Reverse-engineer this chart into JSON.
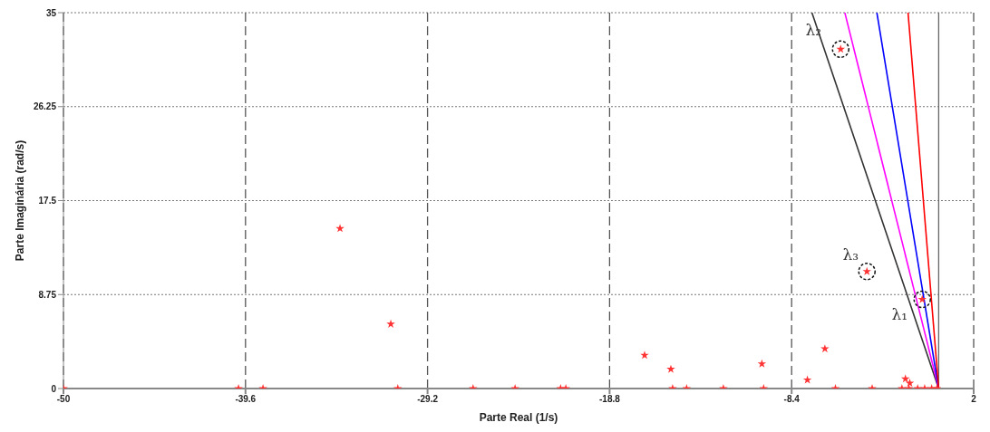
{
  "chart_data": {
    "type": "scatter",
    "xlabel": "Parte Real (1/s)",
    "ylabel": "Parte Imaginária (rad/s)",
    "xlim": [
      -50,
      2
    ],
    "xticks": [
      -50,
      -39.6,
      -29.2,
      -18.8,
      -8.4,
      2
    ],
    "ylim": [
      0,
      35
    ],
    "yticks": [
      0,
      8.75,
      17.5,
      26.25,
      35
    ],
    "grid": true,
    "series": [
      {
        "type": "line",
        "color": "#333333",
        "x": [
          0,
          -7.24
        ],
        "values": [
          0,
          35
        ]
      },
      {
        "type": "line",
        "color": "#ff00ff",
        "x": [
          0,
          -5.36
        ],
        "values": [
          0,
          35
        ]
      },
      {
        "type": "line",
        "color": "#0000ff",
        "x": [
          0,
          -3.53
        ],
        "values": [
          0,
          35
        ]
      },
      {
        "type": "line",
        "color": "#ff0000",
        "x": [
          0,
          -1.75
        ],
        "values": [
          0,
          35
        ]
      },
      {
        "marker": "star",
        "color": "#ff3333",
        "x": [
          -34.2,
          -31.3,
          -16.8,
          -15.3,
          -10.1,
          -6.5,
          -7.5,
          -5.6,
          -4.1,
          -0.94,
          -1.9,
          -1.65,
          -50,
          -40.0,
          -38.6,
          -30.9,
          -26.6,
          -24.2,
          -21.6,
          -21.3,
          -15.2,
          -14.4,
          -12.3,
          -10.0,
          -5.9,
          -3.8,
          -2.1,
          -1.7,
          -1.2,
          -0.8,
          -0.4,
          -0.1
        ],
        "values": [
          14.9,
          6.0,
          3.1,
          1.8,
          2.3,
          3.7,
          0.8,
          31.6,
          10.9,
          8.3,
          0.9,
          0.5,
          0,
          0,
          0,
          0,
          0,
          0,
          0,
          0,
          0,
          0,
          0,
          0,
          0,
          0,
          0,
          0,
          0,
          0,
          0,
          0
        ]
      }
    ],
    "ref_lines": [
      {
        "axis": "x",
        "value": 0,
        "color": "#666666"
      }
    ],
    "annotations": [
      {
        "text": "λ₁",
        "x": -0.94,
        "y": 8.3
      },
      {
        "text": "λ₂",
        "x": -5.6,
        "y": 31.6
      },
      {
        "text": "λ₃",
        "x": -4.1,
        "y": 10.9
      }
    ]
  }
}
